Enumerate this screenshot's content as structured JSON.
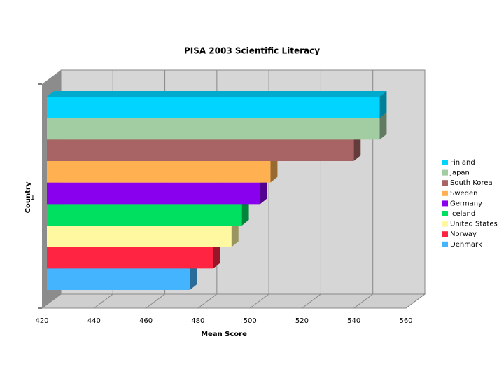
{
  "chart_data": {
    "type": "bar3d_horizontal",
    "title": "PISA 2003 Scientific Literacy",
    "x_label": "Mean Score",
    "y_label": "Country",
    "categories": [
      "1"
    ],
    "xlim": [
      420,
      560
    ],
    "xticks": [
      420,
      440,
      460,
      480,
      500,
      520,
      540,
      560
    ],
    "grid": true,
    "legend": "right",
    "series": [
      {
        "name": "Finland",
        "color": "#00d4ff",
        "values": [
          548
        ]
      },
      {
        "name": "Japan",
        "color": "#a2cca2",
        "values": [
          548
        ]
      },
      {
        "name": "South Korea",
        "color": "#a86464",
        "values": [
          538
        ]
      },
      {
        "name": "Sweden",
        "color": "#ffb050",
        "values": [
          506
        ]
      },
      {
        "name": "Germany",
        "color": "#8800ee",
        "values": [
          502
        ]
      },
      {
        "name": "Iceland",
        "color": "#00e060",
        "values": [
          495
        ]
      },
      {
        "name": "United States",
        "color": "#fff8a0",
        "values": [
          491
        ]
      },
      {
        "name": "Norway",
        "color": "#ff2442",
        "values": [
          484
        ]
      },
      {
        "name": "Denmark",
        "color": "#44b4ff",
        "values": [
          475
        ]
      }
    ]
  }
}
